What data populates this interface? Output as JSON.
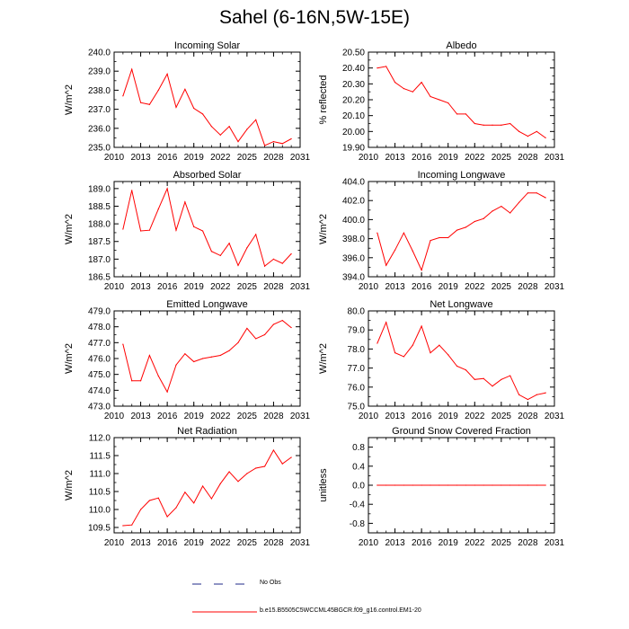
{
  "title": "Sahel (6-16N,5W-15E)",
  "legend": {
    "obs_label": "No Obs",
    "model_label": "b.e15.B5505C5WCCML45BGCR.f09_g16.control.EM1-20",
    "obs_color": "#1f2a8a",
    "model_color": "#ff0000"
  },
  "chart_data": [
    {
      "type": "line",
      "title": "Incoming Solar",
      "xlabel": "",
      "ylabel": "W/m^2",
      "xlim": [
        2010,
        2031
      ],
      "ylim": [
        235.0,
        240.0
      ],
      "xticks": [
        2010,
        2013,
        2016,
        2019,
        2022,
        2025,
        2028,
        2031
      ],
      "yticks": [
        235.0,
        236.0,
        237.0,
        238.0,
        239.0,
        240.0
      ],
      "ydec": 1,
      "series": [
        {
          "name": "b.e15.B5505C5WCCML45BGCR.f09_g16.control.EM1-20",
          "color": "#ff0000",
          "x": [
            2011,
            2012,
            2013,
            2014,
            2015,
            2016,
            2017,
            2018,
            2019,
            2020,
            2021,
            2022,
            2023,
            2024,
            2025,
            2026,
            2027,
            2028,
            2029,
            2030
          ],
          "y": [
            237.7,
            239.1,
            237.35,
            237.25,
            238.0,
            238.85,
            237.1,
            238.05,
            237.05,
            236.75,
            236.1,
            235.65,
            236.1,
            235.3,
            235.95,
            236.45,
            235.1,
            235.3,
            235.2,
            235.45
          ]
        }
      ]
    },
    {
      "type": "line",
      "title": "Albedo",
      "xlabel": "",
      "ylabel": "% reflected",
      "xlim": [
        2010,
        2031
      ],
      "ylim": [
        19.9,
        20.5
      ],
      "xticks": [
        2010,
        2013,
        2016,
        2019,
        2022,
        2025,
        2028,
        2031
      ],
      "yticks": [
        19.9,
        20.0,
        20.1,
        20.2,
        20.3,
        20.4,
        20.5
      ],
      "ydec": 2,
      "series": [
        {
          "name": "b.e15.B5505C5WCCML45BGCR.f09_g16.control.EM1-20",
          "color": "#ff0000",
          "x": [
            2011,
            2012,
            2013,
            2014,
            2015,
            2016,
            2017,
            2018,
            2019,
            2020,
            2021,
            2022,
            2023,
            2024,
            2025,
            2026,
            2027,
            2028,
            2029,
            2030
          ],
          "y": [
            20.4,
            20.41,
            20.31,
            20.27,
            20.25,
            20.31,
            20.22,
            20.2,
            20.18,
            20.11,
            20.11,
            20.05,
            20.04,
            20.04,
            20.04,
            20.05,
            20.0,
            19.97,
            20.0,
            19.96
          ]
        }
      ]
    },
    {
      "type": "line",
      "title": "Absorbed Solar",
      "xlabel": "",
      "ylabel": "W/m^2",
      "xlim": [
        2010,
        2031
      ],
      "ylim": [
        186.5,
        189.2
      ],
      "xticks": [
        2010,
        2013,
        2016,
        2019,
        2022,
        2025,
        2028,
        2031
      ],
      "yticks": [
        186.5,
        187.0,
        187.5,
        188.0,
        188.5,
        189.0
      ],
      "ydec": 1,
      "series": [
        {
          "name": "b.e15.B5505C5WCCML45BGCR.f09_g16.control.EM1-20",
          "color": "#ff0000",
          "x": [
            2011,
            2012,
            2013,
            2014,
            2015,
            2016,
            2017,
            2018,
            2019,
            2020,
            2021,
            2022,
            2023,
            2024,
            2025,
            2026,
            2027,
            2028,
            2029,
            2030
          ],
          "y": [
            187.85,
            188.95,
            187.8,
            187.82,
            188.42,
            189.0,
            187.82,
            188.62,
            187.92,
            187.8,
            187.22,
            187.1,
            187.45,
            186.82,
            187.32,
            187.7,
            186.8,
            187.0,
            186.88,
            187.15
          ]
        }
      ]
    },
    {
      "type": "line",
      "title": "Incoming Longwave",
      "xlabel": "",
      "ylabel": "W/m^2",
      "xlim": [
        2010,
        2031
      ],
      "ylim": [
        394.0,
        404.0
      ],
      "xticks": [
        2010,
        2013,
        2016,
        2019,
        2022,
        2025,
        2028,
        2031
      ],
      "yticks": [
        394.0,
        396.0,
        398.0,
        400.0,
        402.0,
        404.0
      ],
      "ydec": 1,
      "series": [
        {
          "name": "b.e15.B5505C5WCCML45BGCR.f09_g16.control.EM1-20",
          "color": "#ff0000",
          "x": [
            2011,
            2012,
            2013,
            2014,
            2015,
            2016,
            2017,
            2018,
            2019,
            2020,
            2021,
            2022,
            2023,
            2024,
            2025,
            2026,
            2027,
            2028,
            2029,
            2030
          ],
          "y": [
            398.6,
            395.2,
            396.8,
            398.6,
            396.7,
            394.7,
            397.8,
            398.1,
            398.1,
            398.9,
            399.2,
            399.8,
            400.1,
            400.9,
            401.4,
            400.7,
            401.8,
            402.8,
            402.8,
            402.3
          ]
        }
      ]
    },
    {
      "type": "line",
      "title": "Emitted Longwave",
      "xlabel": "",
      "ylabel": "W/m^2",
      "xlim": [
        2010,
        2031
      ],
      "ylim": [
        473.0,
        479.0
      ],
      "xticks": [
        2010,
        2013,
        2016,
        2019,
        2022,
        2025,
        2028,
        2031
      ],
      "yticks": [
        473.0,
        474.0,
        475.0,
        476.0,
        477.0,
        478.0,
        479.0
      ],
      "ydec": 1,
      "series": [
        {
          "name": "b.e15.B5505C5WCCML45BGCR.f09_g16.control.EM1-20",
          "color": "#ff0000",
          "x": [
            2011,
            2012,
            2013,
            2014,
            2015,
            2016,
            2017,
            2018,
            2019,
            2020,
            2021,
            2022,
            2023,
            2024,
            2025,
            2026,
            2027,
            2028,
            2029,
            2030
          ],
          "y": [
            476.9,
            474.6,
            474.6,
            476.2,
            474.9,
            473.9,
            475.6,
            476.3,
            475.8,
            476.0,
            476.1,
            476.2,
            476.5,
            477.0,
            477.9,
            477.25,
            477.5,
            478.15,
            478.4,
            477.95
          ]
        }
      ]
    },
    {
      "type": "line",
      "title": "Net Longwave",
      "xlabel": "",
      "ylabel": "W/m^2",
      "xlim": [
        2010,
        2031
      ],
      "ylim": [
        75.0,
        80.0
      ],
      "xticks": [
        2010,
        2013,
        2016,
        2019,
        2022,
        2025,
        2028,
        2031
      ],
      "yticks": [
        75.0,
        76.0,
        77.0,
        78.0,
        79.0,
        80.0
      ],
      "ydec": 1,
      "series": [
        {
          "name": "b.e15.B5505C5WCCML45BGCR.f09_g16.control.EM1-20",
          "color": "#ff0000",
          "x": [
            2011,
            2012,
            2013,
            2014,
            2015,
            2016,
            2017,
            2018,
            2019,
            2020,
            2021,
            2022,
            2023,
            2024,
            2025,
            2026,
            2027,
            2028,
            2029,
            2030
          ],
          "y": [
            78.3,
            79.4,
            77.8,
            77.6,
            78.2,
            79.2,
            77.8,
            78.2,
            77.7,
            77.1,
            76.9,
            76.4,
            76.45,
            76.05,
            76.4,
            76.6,
            75.6,
            75.35,
            75.6,
            75.7
          ]
        }
      ]
    },
    {
      "type": "line",
      "title": "Net Radiation",
      "xlabel": "",
      "ylabel": "W/m^2",
      "xlim": [
        2010,
        2031
      ],
      "ylim": [
        109.35,
        112.0
      ],
      "xticks": [
        2010,
        2013,
        2016,
        2019,
        2022,
        2025,
        2028,
        2031
      ],
      "yticks": [
        109.5,
        110.0,
        110.5,
        111.0,
        111.5,
        112.0
      ],
      "ydec": 1,
      "series": [
        {
          "name": "b.e15.B5505C5WCCML45BGCR.f09_g16.control.EM1-20",
          "color": "#ff0000",
          "x": [
            2011,
            2012,
            2013,
            2014,
            2015,
            2016,
            2017,
            2018,
            2019,
            2020,
            2021,
            2022,
            2023,
            2024,
            2025,
            2026,
            2027,
            2028,
            2029,
            2030
          ],
          "y": [
            109.55,
            109.57,
            110.0,
            110.25,
            110.32,
            109.8,
            110.05,
            110.48,
            110.18,
            110.65,
            110.3,
            110.72,
            111.05,
            110.78,
            111.0,
            111.15,
            111.2,
            111.65,
            111.27,
            111.45
          ]
        }
      ]
    },
    {
      "type": "line",
      "title": "Ground Snow Covered Fraction",
      "xlabel": "",
      "ylabel": "unitless",
      "xlim": [
        2010,
        2031
      ],
      "ylim": [
        -1.0,
        1.0
      ],
      "xticks": [
        2010,
        2013,
        2016,
        2019,
        2022,
        2025,
        2028,
        2031
      ],
      "yticks": [
        -0.8,
        -0.4,
        0.0,
        0.4,
        0.8
      ],
      "ydec": 1,
      "series": [
        {
          "name": "b.e15.B5505C5WCCML45BGCR.f09_g16.control.EM1-20",
          "color": "#ff0000",
          "x": [
            2011,
            2012,
            2013,
            2014,
            2015,
            2016,
            2017,
            2018,
            2019,
            2020,
            2021,
            2022,
            2023,
            2024,
            2025,
            2026,
            2027,
            2028,
            2029,
            2030
          ],
          "y": [
            0,
            0,
            0,
            0,
            0,
            0,
            0,
            0,
            0,
            0,
            0,
            0,
            0,
            0,
            0,
            0,
            0,
            0,
            0,
            0
          ]
        }
      ]
    }
  ]
}
